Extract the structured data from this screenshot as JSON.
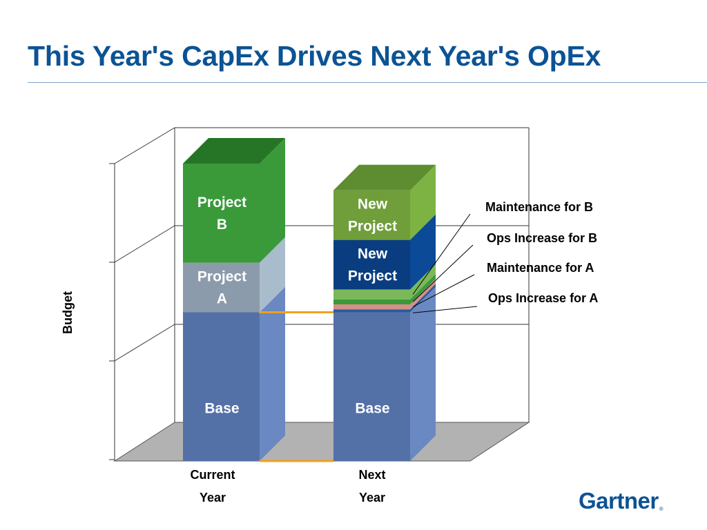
{
  "page": {
    "title": "This Year's CapEx Drives Next Year's OpEx",
    "brand": "Gartner",
    "brand_mark": "®"
  },
  "chart_data": {
    "type": "bar",
    "stacked": true,
    "three_d": true,
    "title": "",
    "xlabel": "",
    "ylabel": "Budget",
    "grid": true,
    "categories": [
      {
        "line1": "Current",
        "line2": "Year"
      },
      {
        "line1": "Next",
        "line2": "Year"
      }
    ],
    "ylim": [
      0,
      300
    ],
    "stacks": [
      {
        "category": 0,
        "segments": [
          {
            "name": "Base",
            "label_lines": [
              "Base"
            ],
            "value": 150,
            "front": "#5471a7",
            "side": "#6a88c2",
            "top": "#8aa4d6"
          },
          {
            "name": "Project A",
            "label_lines": [
              "Project",
              "A"
            ],
            "value": 50,
            "front": "#8c9bac",
            "side": "#a9bccc",
            "top": "#c0cfdb"
          },
          {
            "name": "Project B",
            "label_lines": [
              "Project",
              "B"
            ],
            "value": 100,
            "front": "#3a9a3a",
            "side": "#3a9a3a",
            "top": "#267426"
          }
        ]
      },
      {
        "category": 1,
        "segments": [
          {
            "name": "Base",
            "label_lines": [
              "Base"
            ],
            "value": 150,
            "front": "#5471a7",
            "side": "#6a88c2",
            "top": "#8aa4d6"
          },
          {
            "name": "Ops Increase for A",
            "label_lines": [],
            "value": 3,
            "front": "#2c5aa0",
            "side": "#2c5aa0",
            "top": "#2c5aa0"
          },
          {
            "name": "Maintenance for A",
            "label_lines": [],
            "value": 5,
            "front": "#d3918a",
            "side": "#d3918a",
            "top": "#e1aaa4"
          },
          {
            "name": "Ops Increase for B",
            "label_lines": [],
            "value": 5,
            "front": "#3a9a3a",
            "side": "#3a9a3a",
            "top": "#5cb85c"
          },
          {
            "name": "Maintenance for B",
            "label_lines": [],
            "value": 10,
            "front": "#7bb85a",
            "side": "#7bb85a",
            "top": "#9ccf7c"
          },
          {
            "name": "New Project (blue)",
            "label_lines": [
              "New",
              "Project"
            ],
            "value": 50,
            "front": "#0a3d80",
            "side": "#0a4a96",
            "top": "#1c5cab"
          },
          {
            "name": "New Project (green)",
            "label_lines": [
              "New",
              "Project"
            ],
            "value": 50,
            "front": "#6f9e3a",
            "side": "#7cb342",
            "top": "#5e8c30"
          }
        ]
      }
    ],
    "annotations": [
      {
        "text": "Maintenance for B",
        "segment": "Maintenance for B"
      },
      {
        "text": "Ops Increase for B",
        "segment": "Ops Increase for B"
      },
      {
        "text": "Maintenance for A",
        "segment": "Maintenance for A"
      },
      {
        "text": "Ops Increase for A",
        "segment": "Ops Increase for A"
      }
    ],
    "connector_color": "#f0a020",
    "floor_color": "#b2b2b2"
  }
}
